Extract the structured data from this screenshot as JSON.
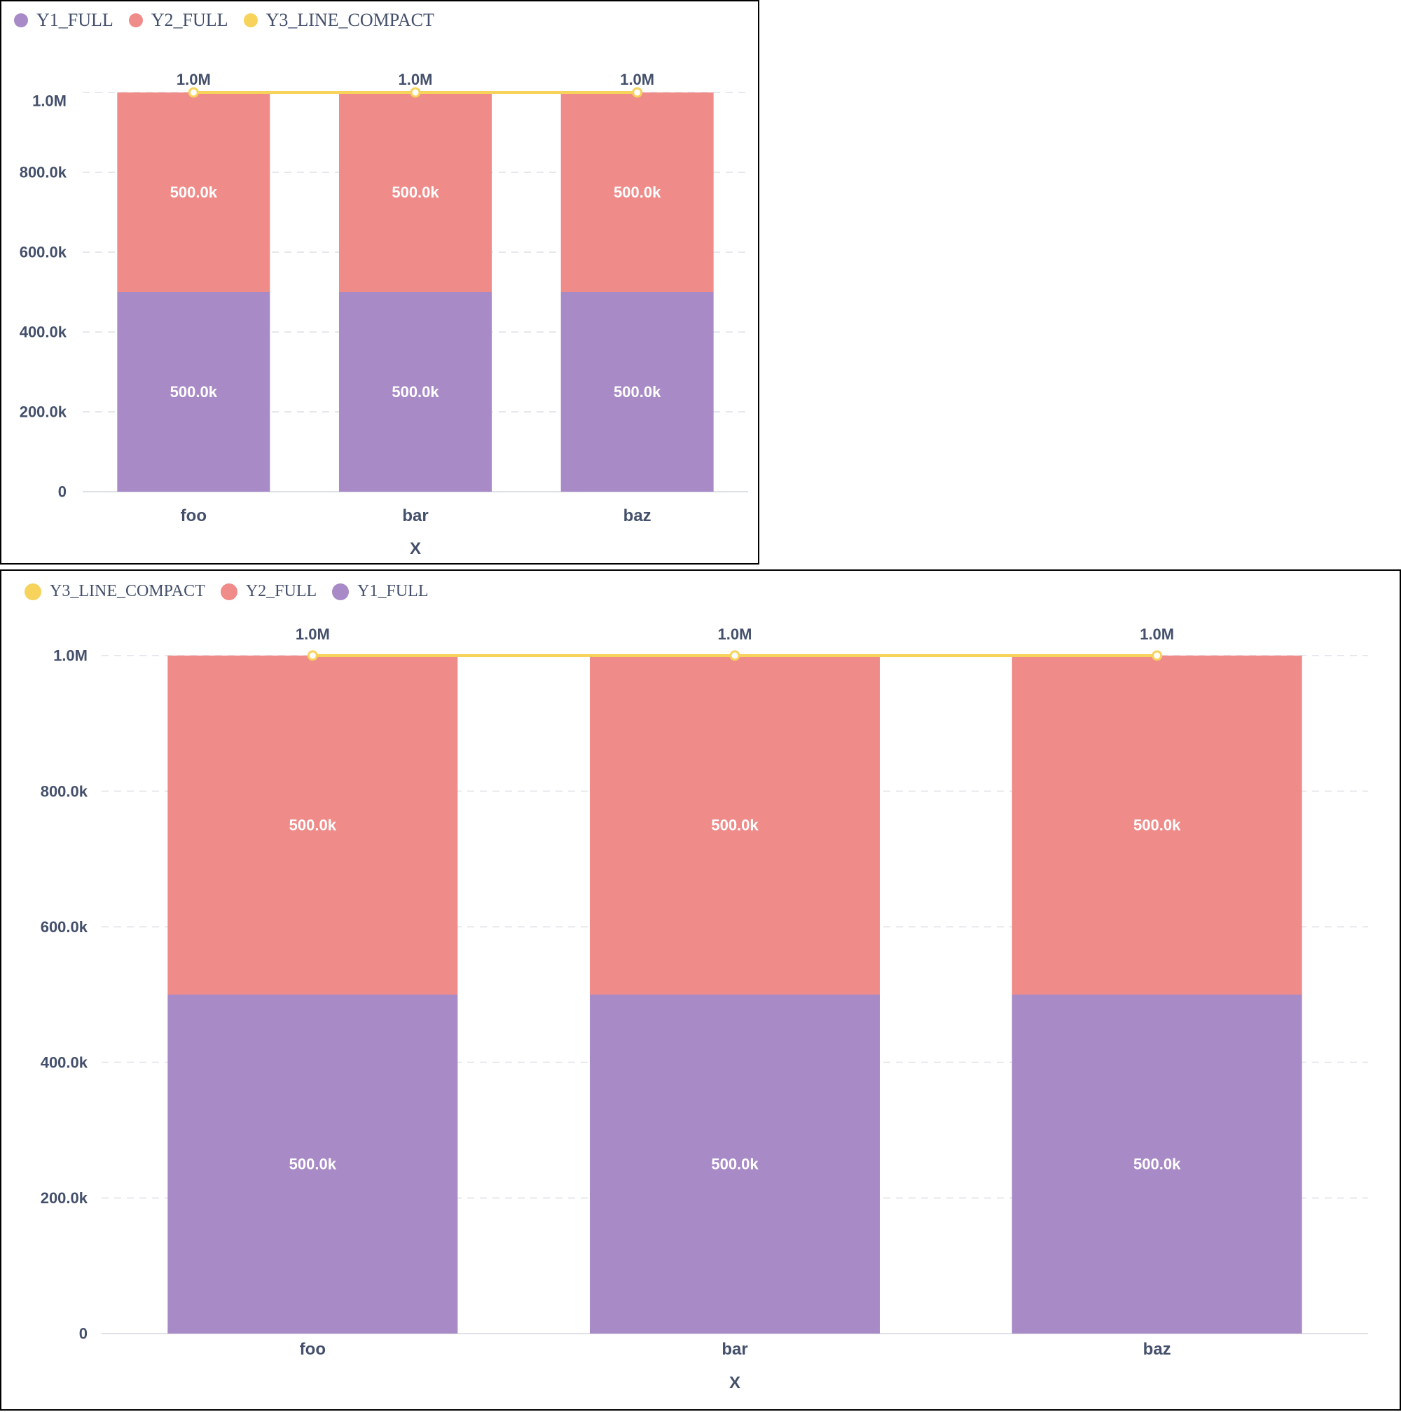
{
  "colors": {
    "Y1_FULL": "#a88ac6",
    "Y2_FULL": "#ef8b89",
    "Y3_LINE_COMPACT": "#f7d35c",
    "axis_text": "#44506b",
    "grid": "#e6e8ee"
  },
  "chart_data": [
    {
      "type": "bar",
      "stacked": true,
      "legend": [
        "Y1_FULL",
        "Y2_FULL",
        "Y3_LINE_COMPACT"
      ],
      "legend_placement": "top-left",
      "categories": [
        "foo",
        "bar",
        "baz"
      ],
      "xlabel": "X",
      "ylabel": "",
      "ylim": [
        0,
        1000000
      ],
      "yticks": [
        0,
        200000,
        400000,
        600000,
        800000,
        1000000
      ],
      "ytick_labels": [
        "0",
        "200.0k",
        "400.0k",
        "600.0k",
        "800.0k",
        "1.0M"
      ],
      "grid": true,
      "series": [
        {
          "name": "Y1_FULL",
          "type": "bar",
          "values": [
            500000,
            500000,
            500000
          ],
          "labels": [
            "500.0k",
            "500.0k",
            "500.0k"
          ]
        },
        {
          "name": "Y2_FULL",
          "type": "bar",
          "values": [
            500000,
            500000,
            500000
          ],
          "labels": [
            "500.0k",
            "500.0k",
            "500.0k"
          ]
        },
        {
          "name": "Y3_LINE_COMPACT",
          "type": "line",
          "values": [
            1000000,
            1000000,
            1000000
          ],
          "labels": [
            "1.0M",
            "1.0M",
            "1.0M"
          ]
        }
      ]
    },
    {
      "type": "bar",
      "stacked": true,
      "legend": [
        "Y3_LINE_COMPACT",
        "Y2_FULL",
        "Y1_FULL"
      ],
      "legend_placement": "top-left",
      "categories": [
        "foo",
        "bar",
        "baz"
      ],
      "xlabel": "X",
      "ylabel": "",
      "ylim": [
        0,
        1000000
      ],
      "yticks": [
        0,
        200000,
        400000,
        600000,
        800000,
        1000000
      ],
      "ytick_labels": [
        "0",
        "200.0k",
        "400.0k",
        "600.0k",
        "800.0k",
        "1.0M"
      ],
      "grid": true,
      "series": [
        {
          "name": "Y1_FULL",
          "type": "bar",
          "values": [
            500000,
            500000,
            500000
          ],
          "labels": [
            "500.0k",
            "500.0k",
            "500.0k"
          ]
        },
        {
          "name": "Y2_FULL",
          "type": "bar",
          "values": [
            500000,
            500000,
            500000
          ],
          "labels": [
            "500.0k",
            "500.0k",
            "500.0k"
          ]
        },
        {
          "name": "Y3_LINE_COMPACT",
          "type": "line",
          "values": [
            1000000,
            1000000,
            1000000
          ],
          "labels": [
            "1.0M",
            "1.0M",
            "1.0M"
          ]
        }
      ]
    }
  ]
}
